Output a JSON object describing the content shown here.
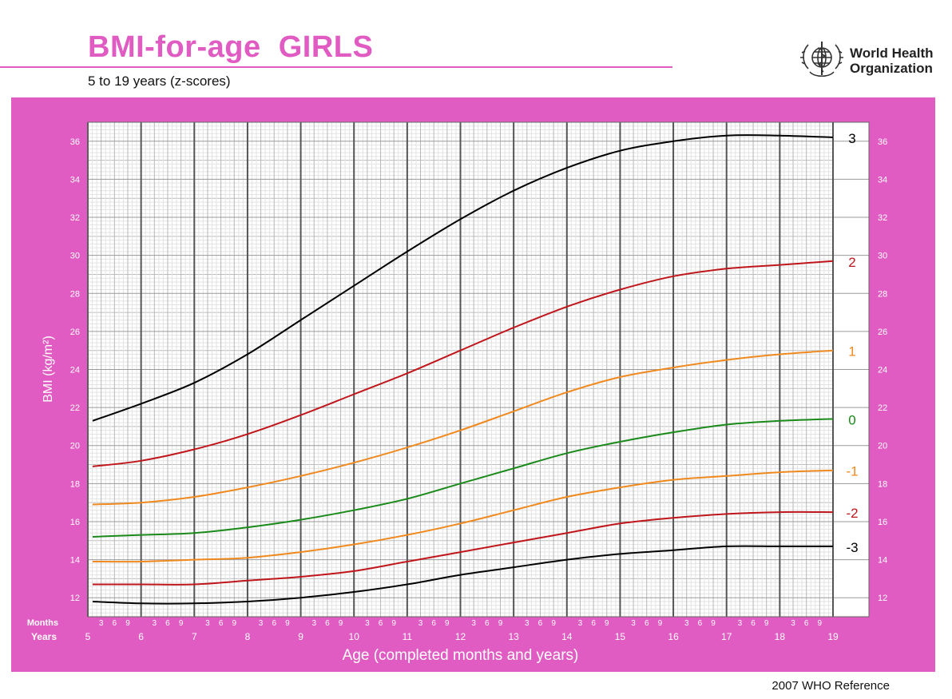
{
  "header": {
    "title": "BMI-for-age  GIRLS",
    "subtitle": "5 to 19 years (z-scores)",
    "org_line1": "World Health",
    "org_line2": "Organization"
  },
  "footer": {
    "reference": "2007 WHO Reference"
  },
  "colors": {
    "panel": "#e05cc2",
    "sd3": "#000000",
    "sd2": "#c0161b",
    "sd1": "#f0891e",
    "median": "#1a8a1a"
  },
  "chart_data": {
    "type": "line",
    "xlabel": "Age (completed months and years)",
    "ylabel": "BMI (kg/m²)",
    "x_axis_row_labels": {
      "months": "Months",
      "years": "Years"
    },
    "month_ticks": [
      "3",
      "6",
      "9"
    ],
    "xlim": [
      5,
      19
    ],
    "ylim": [
      11,
      37
    ],
    "x_ticks": [
      5,
      6,
      7,
      8,
      9,
      10,
      11,
      12,
      13,
      14,
      15,
      16,
      17,
      18,
      19
    ],
    "y_ticks": [
      12,
      14,
      16,
      18,
      20,
      22,
      24,
      26,
      28,
      30,
      32,
      34,
      36
    ],
    "grid": true,
    "x": [
      5,
      6,
      7,
      8,
      9,
      10,
      11,
      12,
      13,
      14,
      15,
      16,
      17,
      18,
      19
    ],
    "series": [
      {
        "name": "3",
        "color_key": "sd3",
        "values": [
          21.3,
          22.2,
          23.3,
          24.8,
          26.6,
          28.4,
          30.2,
          31.9,
          33.4,
          34.6,
          35.5,
          36.0,
          36.3,
          36.3,
          36.2
        ]
      },
      {
        "name": "2",
        "color_key": "sd2",
        "values": [
          18.9,
          19.2,
          19.8,
          20.6,
          21.6,
          22.7,
          23.8,
          25.0,
          26.2,
          27.3,
          28.2,
          28.9,
          29.3,
          29.5,
          29.7
        ]
      },
      {
        "name": "1",
        "color_key": "sd1",
        "values": [
          16.9,
          17.0,
          17.3,
          17.8,
          18.4,
          19.1,
          19.9,
          20.8,
          21.8,
          22.8,
          23.6,
          24.1,
          24.5,
          24.8,
          25.0
        ]
      },
      {
        "name": "0",
        "color_key": "median",
        "values": [
          15.2,
          15.3,
          15.4,
          15.7,
          16.1,
          16.6,
          17.2,
          18.0,
          18.8,
          19.6,
          20.2,
          20.7,
          21.1,
          21.3,
          21.4
        ]
      },
      {
        "name": "-1",
        "color_key": "sd1",
        "values": [
          13.9,
          13.9,
          14.0,
          14.1,
          14.4,
          14.8,
          15.3,
          15.9,
          16.6,
          17.3,
          17.8,
          18.2,
          18.4,
          18.6,
          18.7
        ]
      },
      {
        "name": "-2",
        "color_key": "sd2",
        "values": [
          12.7,
          12.7,
          12.7,
          12.9,
          13.1,
          13.4,
          13.9,
          14.4,
          14.9,
          15.4,
          15.9,
          16.2,
          16.4,
          16.5,
          16.5
        ]
      },
      {
        "name": "-3",
        "color_key": "sd3",
        "values": [
          11.8,
          11.7,
          11.7,
          11.8,
          12.0,
          12.3,
          12.7,
          13.2,
          13.6,
          14.0,
          14.3,
          14.5,
          14.7,
          14.7,
          14.7
        ]
      }
    ]
  }
}
